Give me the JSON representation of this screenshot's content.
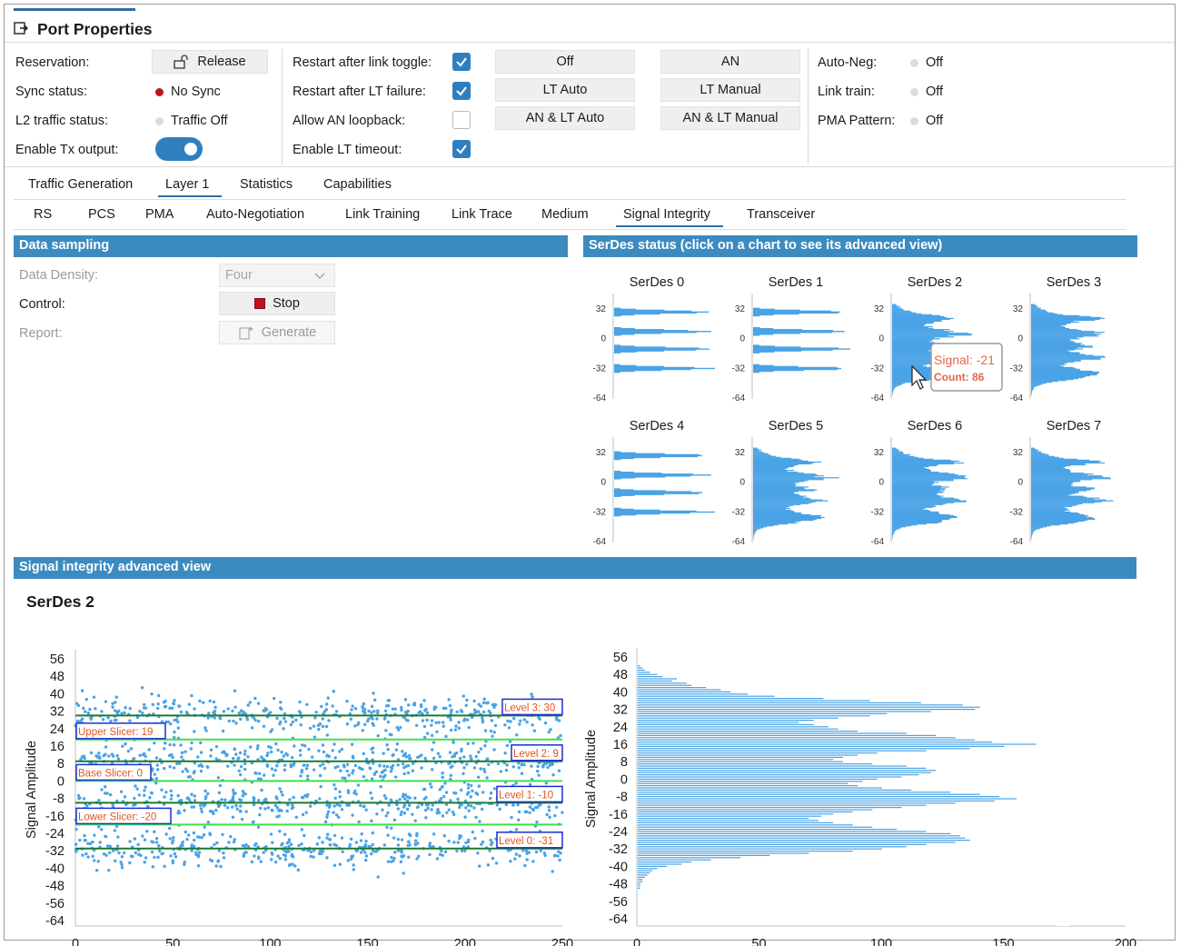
{
  "window": {
    "title": "Port Properties"
  },
  "status": {
    "reservation_label": "Reservation:",
    "release_button": "Release",
    "sync_label": "Sync status:",
    "sync_value": "No Sync",
    "l2_label": "L2 traffic status:",
    "l2_value": "Traffic Off",
    "tx_label": "Enable Tx output:",
    "tx_enabled": true
  },
  "options": [
    {
      "label": "Restart after link toggle:",
      "checked": true
    },
    {
      "label": "Restart after LT failure:",
      "checked": true
    },
    {
      "label": "Allow AN loopback:",
      "checked": false
    },
    {
      "label": "Enable LT timeout:",
      "checked": true
    }
  ],
  "mode_buttons": {
    "col1": [
      "Off",
      "LT Auto",
      "AN & LT Auto"
    ],
    "col2": [
      "AN",
      "LT Manual",
      "AN & LT Manual"
    ]
  },
  "link_state": [
    {
      "label": "Auto-Neg:",
      "value": "Off"
    },
    {
      "label": "Link train:",
      "value": "Off"
    },
    {
      "label": "PMA Pattern:",
      "value": "Off"
    }
  ],
  "main_tabs": [
    "Traffic Generation",
    "Layer 1",
    "Statistics",
    "Capabilities"
  ],
  "main_tab_active": "Layer 1",
  "sub_tabs": [
    "RS",
    "PCS",
    "PMA",
    "Auto-Negotiation",
    "Link Training",
    "Link Trace",
    "Medium",
    "Signal Integrity",
    "Transceiver"
  ],
  "sub_tab_active": "Signal Integrity",
  "data_sampling": {
    "header": "Data sampling",
    "density_label": "Data Density:",
    "density_value": "Four",
    "control_label": "Control:",
    "stop_button": "Stop",
    "report_label": "Report:",
    "generate_button": "Generate"
  },
  "serdes_status": {
    "header": "SerDes status (click on a chart to see its advanced view)",
    "charts": [
      "SerDes 0",
      "SerDes 1",
      "SerDes 2",
      "SerDes 3",
      "SerDes 4",
      "SerDes 5",
      "SerDes 6",
      "SerDes 7"
    ],
    "y_ticks": [
      "32",
      "0",
      "-32",
      "-64"
    ],
    "tooltip": {
      "signal": "Signal: -21",
      "count": "Count: 86"
    }
  },
  "advanced": {
    "header": "Signal integrity advanced view",
    "title": "SerDes 2",
    "ylabel": "Signal Amplitude"
  },
  "chart_data": [
    {
      "type": "scatter",
      "title": "SerDes 2",
      "ylabel": "Signal Amplitude",
      "xlabel": "",
      "xlim": [
        0,
        250
      ],
      "ylim": [
        -64,
        56
      ],
      "x_ticks": [
        "0",
        "50",
        "100",
        "150",
        "200",
        "250"
      ],
      "y_ticks": [
        "56",
        "48",
        "40",
        "32",
        "24",
        "16",
        "8",
        "0",
        "-8",
        "-16",
        "-24",
        "-32",
        "-40",
        "-48",
        "-56",
        "-64"
      ],
      "levels": [
        {
          "label": "Level 3: 30",
          "value": 30
        },
        {
          "label": "Level 2: 9",
          "value": 9
        },
        {
          "label": "Level 1: -10",
          "value": -10
        },
        {
          "label": "Level 0: -31",
          "value": -31
        }
      ],
      "slicers": [
        {
          "label": "Upper Slicer: 19",
          "value": 19
        },
        {
          "label": "Base Slicer: 0",
          "value": 0
        },
        {
          "label": "Lower Slicer: -20",
          "value": -20
        }
      ],
      "grid": false
    },
    {
      "type": "bar",
      "orientation": "horizontal",
      "ylabel": "Signal Amplitude",
      "xlim": [
        0,
        200
      ],
      "ylim": [
        -64,
        56
      ],
      "x_ticks": [
        "0",
        "50",
        "100",
        "150",
        "200"
      ],
      "y_ticks": [
        "56",
        "48",
        "40",
        "32",
        "24",
        "16",
        "8",
        "0",
        "-8",
        "-16",
        "-24",
        "-32",
        "-40",
        "-48",
        "-56",
        "-64"
      ],
      "y": [
        52,
        51,
        50,
        49,
        48,
        47,
        46,
        45,
        44,
        43,
        42,
        41,
        40,
        39,
        38,
        37,
        36,
        35,
        34,
        33,
        32,
        31,
        30,
        29,
        28,
        27,
        26,
        25,
        24,
        23,
        22,
        21,
        20,
        19,
        18,
        17,
        16,
        15,
        14,
        13,
        12,
        11,
        10,
        9,
        8,
        7,
        6,
        5,
        4,
        3,
        2,
        1,
        0,
        -1,
        -2,
        -3,
        -4,
        -5,
        -6,
        -7,
        -8,
        -9,
        -10,
        -11,
        -12,
        -13,
        -14,
        -15,
        -16,
        -17,
        -18,
        -19,
        -20,
        -21,
        -22,
        -23,
        -24,
        -25,
        -26,
        -27,
        -28,
        -29,
        -30,
        -31,
        -32,
        -33,
        -34,
        -35,
        -36,
        -37,
        -38,
        -39,
        -40,
        -41,
        -42,
        -43,
        -44,
        -45,
        -46,
        -47,
        -48,
        -49,
        -50
      ],
      "values": [
        1,
        2,
        3,
        5,
        8,
        10,
        16,
        14,
        20,
        22,
        28,
        34,
        38,
        45,
        56,
        76,
        95,
        116,
        133,
        140,
        138,
        120,
        102,
        95,
        82,
        72,
        66,
        72,
        78,
        82,
        90,
        110,
        122,
        130,
        138,
        145,
        163,
        150,
        136,
        118,
        98,
        90,
        84,
        80,
        84,
        96,
        110,
        118,
        122,
        120,
        115,
        108,
        98,
        92,
        86,
        90,
        100,
        112,
        128,
        140,
        148,
        155,
        146,
        130,
        118,
        108,
        96,
        88,
        80,
        75,
        70,
        74,
        80,
        88,
        96,
        106,
        118,
        128,
        132,
        134,
        136,
        130,
        118,
        110,
        100,
        88,
        70,
        54,
        42,
        30,
        22,
        18,
        12,
        8,
        6,
        5,
        4,
        3,
        2,
        2,
        1,
        1,
        1
      ]
    }
  ]
}
